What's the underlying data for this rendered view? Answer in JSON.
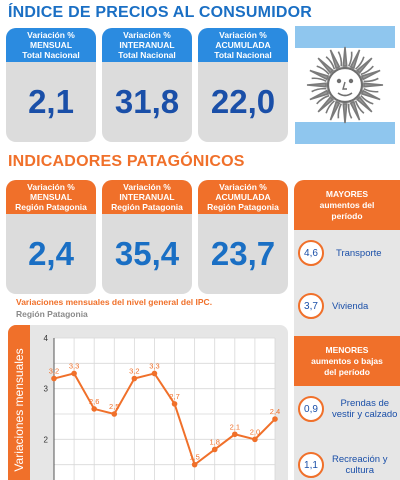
{
  "header": {
    "title": "ÍNDICE DE PRECIOS AL CONSUMIDOR",
    "section_title": "INDICADORES PATAGÓNICOS"
  },
  "national_cards": [
    {
      "line1": "Variación %",
      "line2": "MENSUAL",
      "line3": "Total Nacional",
      "value": "2,1"
    },
    {
      "line1": "Variación %",
      "line2": "INTERANUAL",
      "line3": "Total Nacional",
      "value": "31,8"
    },
    {
      "line1": "Variación %",
      "line2": "ACUMULADA",
      "line3": "Total Nacional",
      "value": "22,0"
    }
  ],
  "patagonia_cards": [
    {
      "line1": "Variación %",
      "line2": "MENSUAL",
      "line3": "Región Patagonia",
      "value": "2,4"
    },
    {
      "line1": "Variación %",
      "line2": "INTERANUAL",
      "line3": "Región Patagonia",
      "value": "35,4"
    },
    {
      "line1": "Variación %",
      "line2": "ACUMULADA",
      "line3": "Región Patagonia",
      "value": "23,7"
    }
  ],
  "sidebar": {
    "mayores_title": [
      "MAYORES",
      "aumentos del",
      "período"
    ],
    "mayores_items": [
      {
        "value": "4,6",
        "label": [
          "Transporte"
        ]
      },
      {
        "value": "3,7",
        "label": [
          "Vivienda"
        ]
      }
    ],
    "menores_title": [
      "MENORES",
      "aumentos o bajas",
      "del período"
    ],
    "menores_items": [
      {
        "value": "0,9",
        "label": [
          "Prendas de",
          "vestir y calzado"
        ]
      },
      {
        "value": "1,1",
        "label": [
          "Recreación y",
          "cultura"
        ]
      }
    ]
  },
  "colors": {
    "blue": "#2b8be0",
    "orange": "#f0702a",
    "dark_blue": "#1a4fa8"
  },
  "chart_data": {
    "type": "line",
    "title": "Variaciones mensuales del nivel general del IPC.",
    "subtitle": "Región Patagonia",
    "ylabel": "Variaciones mensuales",
    "xlabel": "",
    "ylim": [
      1,
      4
    ],
    "yticks": [
      1,
      2,
      3,
      4
    ],
    "grid": true,
    "series": [
      {
        "values": [
          3.2,
          3.3,
          2.6,
          2.5,
          3.2,
          3.3,
          2.7,
          1.5,
          1.8,
          2.1,
          2.0,
          2.4
        ],
        "labels": [
          "3,2",
          "3,3",
          "2,6",
          "2,5",
          "3,2",
          "3,3",
          "2,7",
          "1,5",
          "1,8",
          "2,1",
          "2,0",
          "2,4"
        ]
      }
    ]
  }
}
